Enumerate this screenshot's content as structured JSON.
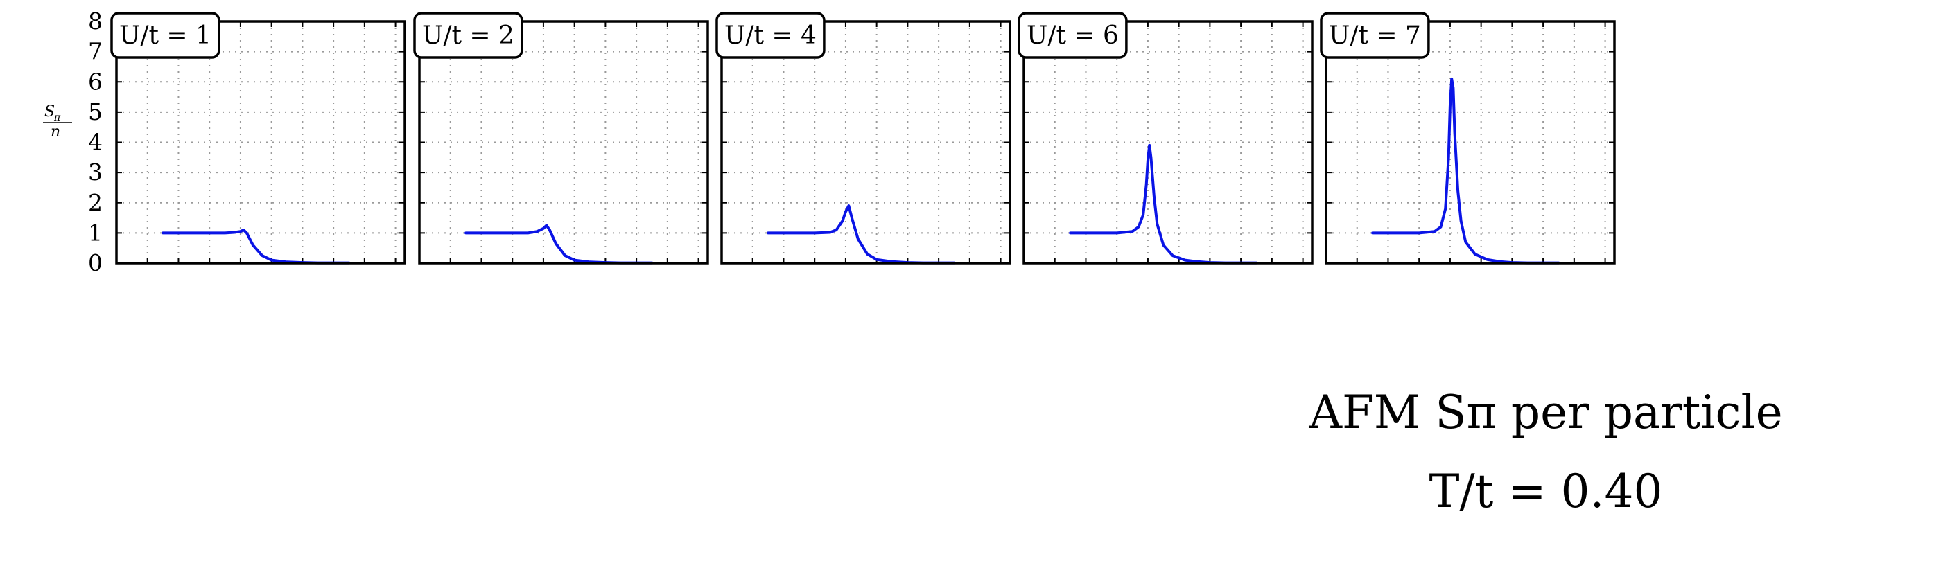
{
  "figure": {
    "ylabel_top": "S",
    "ylabel_sub": "π",
    "ylabel_bottom": "n",
    "caption_line1": "AFM Sπ per particle",
    "caption_line2": "T/t = 0.40",
    "y_tick_labels": [
      "0",
      "1",
      "2",
      "3",
      "4",
      "5",
      "6",
      "7",
      "8"
    ]
  },
  "colors": {
    "curve": "#0a14e6",
    "frame": "#000000",
    "grid": "#9a9a9a"
  },
  "chart_data": [
    {
      "type": "line",
      "label": "U/t = 1",
      "ylim": [
        0,
        8
      ],
      "grid": true,
      "series": [
        {
          "x": [
            -2.5,
            -1.0,
            -0.5,
            -0.2,
            0.0,
            0.1,
            0.2,
            0.4,
            0.7,
            1.0,
            1.5,
            2.0,
            2.5,
            3.5
          ],
          "y": [
            1.0,
            1.0,
            1.0,
            1.02,
            1.05,
            1.1,
            1.0,
            0.6,
            0.25,
            0.1,
            0.04,
            0.02,
            0.01,
            0.01
          ]
        }
      ]
    },
    {
      "type": "line",
      "label": "U/t = 2",
      "ylim": [
        0,
        8
      ],
      "grid": true,
      "series": [
        {
          "x": [
            -2.5,
            -1.0,
            -0.5,
            -0.2,
            0.0,
            0.1,
            0.2,
            0.4,
            0.7,
            1.0,
            1.5,
            2.0,
            2.5,
            3.5
          ],
          "y": [
            1.0,
            1.0,
            1.0,
            1.05,
            1.15,
            1.25,
            1.1,
            0.65,
            0.25,
            0.1,
            0.04,
            0.02,
            0.01,
            0.01
          ]
        }
      ]
    },
    {
      "type": "line",
      "label": "U/t = 4",
      "ylim": [
        0,
        8
      ],
      "grid": true,
      "series": [
        {
          "x": [
            -2.5,
            -1.0,
            -0.5,
            -0.3,
            -0.1,
            0.0,
            0.1,
            0.2,
            0.4,
            0.7,
            1.0,
            1.5,
            2.0,
            2.5,
            3.5
          ],
          "y": [
            1.0,
            1.0,
            1.02,
            1.1,
            1.4,
            1.7,
            1.9,
            1.5,
            0.8,
            0.3,
            0.12,
            0.05,
            0.02,
            0.01,
            0.01
          ]
        }
      ]
    },
    {
      "type": "line",
      "label": "U/t = 6",
      "ylim": [
        0,
        8
      ],
      "grid": true,
      "series": [
        {
          "x": [
            -2.5,
            -1.0,
            -0.5,
            -0.3,
            -0.15,
            -0.05,
            0.0,
            0.05,
            0.1,
            0.2,
            0.3,
            0.5,
            0.8,
            1.2,
            1.6,
            2.0,
            2.5,
            3.5
          ],
          "y": [
            1.0,
            1.0,
            1.05,
            1.2,
            1.6,
            2.6,
            3.4,
            3.9,
            3.5,
            2.2,
            1.3,
            0.6,
            0.25,
            0.1,
            0.05,
            0.02,
            0.01,
            0.01
          ]
        }
      ]
    },
    {
      "type": "line",
      "label": "U/t = 7",
      "ylim": [
        0,
        8
      ],
      "grid": true,
      "series": [
        {
          "x": [
            -2.5,
            -1.0,
            -0.5,
            -0.3,
            -0.15,
            -0.05,
            0.0,
            0.05,
            0.1,
            0.15,
            0.25,
            0.35,
            0.5,
            0.8,
            1.2,
            1.6,
            2.0,
            2.5,
            3.5
          ],
          "y": [
            1.0,
            1.0,
            1.05,
            1.2,
            1.8,
            3.5,
            5.2,
            6.1,
            5.8,
            4.3,
            2.4,
            1.4,
            0.7,
            0.3,
            0.12,
            0.05,
            0.02,
            0.01,
            0.01
          ]
        }
      ]
    }
  ]
}
